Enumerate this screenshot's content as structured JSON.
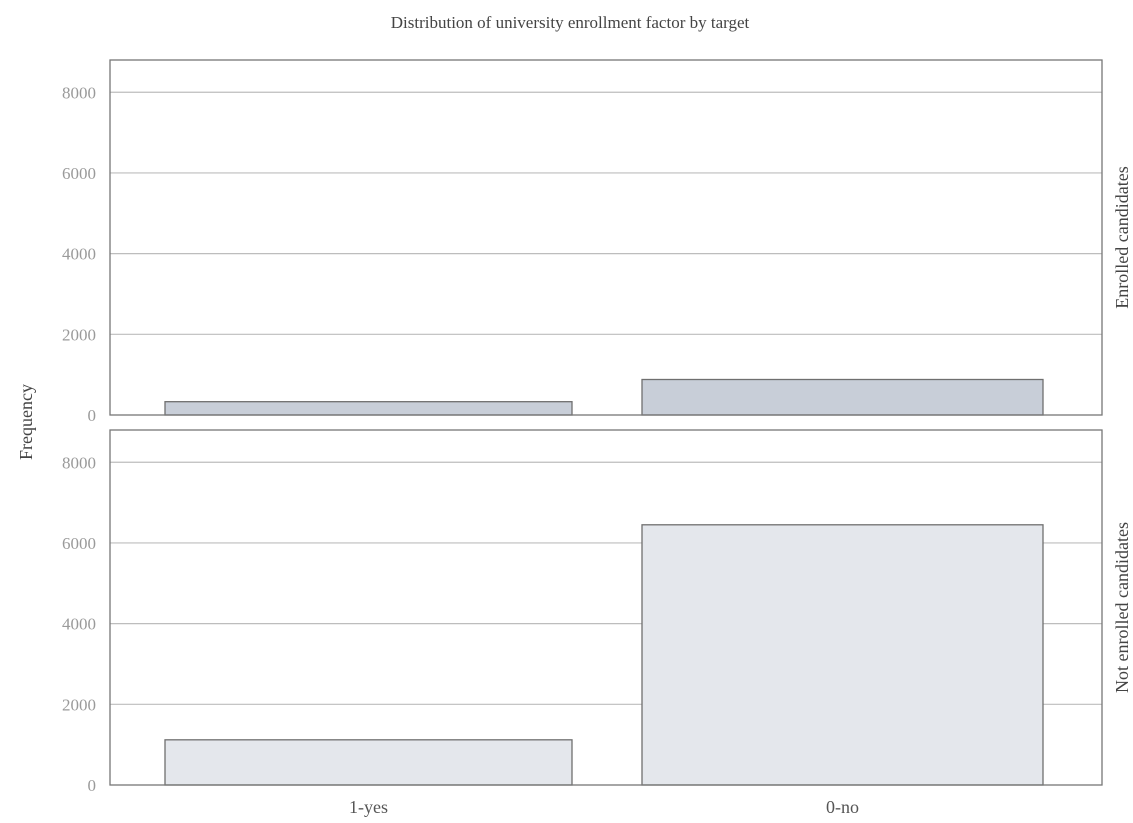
{
  "chart_data": {
    "type": "bar",
    "title": "Distribution of university enrollment factor by target",
    "ylabel": "Frequency",
    "xlabel": "",
    "categories": [
      "1-yes",
      "0-no"
    ],
    "ylim": [
      0,
      8800
    ],
    "yticks": [
      0,
      2000,
      4000,
      6000,
      8000
    ],
    "grid": true,
    "facets": [
      {
        "label": "Enrolled candidates",
        "values": [
          330,
          880
        ],
        "color": "#c8ced8"
      },
      {
        "label": "Not enrolled candidates",
        "values": [
          1120,
          6450
        ],
        "color": "#e4e7ec"
      }
    ]
  }
}
